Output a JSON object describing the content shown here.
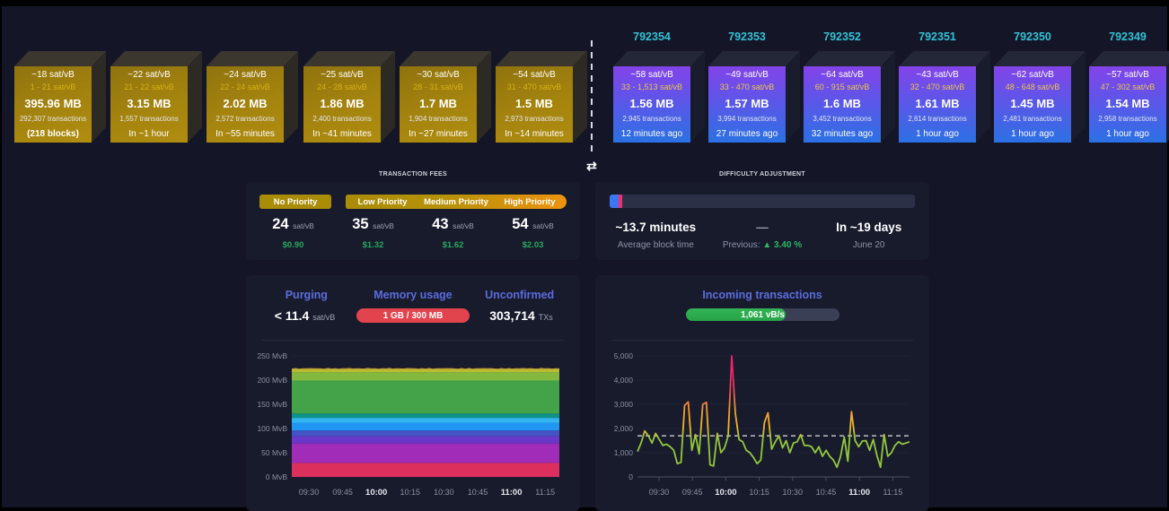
{
  "mempool_blocks": [
    {
      "median_fee": "~18 sat/vB",
      "fee_range": "1 - 21 sat/vB",
      "size": "395.96 MB",
      "tx_count": "292,307 transactions",
      "eta": "(218 blocks)"
    },
    {
      "median_fee": "~22 sat/vB",
      "fee_range": "21 - 22 sat/vB",
      "size": "3.15 MB",
      "tx_count": "1,557 transactions",
      "eta": "In ~1 hour"
    },
    {
      "median_fee": "~24 sat/vB",
      "fee_range": "22 - 24 sat/vB",
      "size": "2.02 MB",
      "tx_count": "2,572 transactions",
      "eta": "In ~55 minutes"
    },
    {
      "median_fee": "~25 sat/vB",
      "fee_range": "24 - 28 sat/vB",
      "size": "1.86 MB",
      "tx_count": "2,400 transactions",
      "eta": "In ~41 minutes"
    },
    {
      "median_fee": "~30 sat/vB",
      "fee_range": "28 - 31 sat/vB",
      "size": "1.7 MB",
      "tx_count": "1,904 transactions",
      "eta": "In ~27 minutes"
    },
    {
      "median_fee": "~54 sat/vB",
      "fee_range": "31 - 470 sat/vB",
      "size": "1.5 MB",
      "tx_count": "2,973 transactions",
      "eta": "In ~14 minutes"
    }
  ],
  "mined_blocks": [
    {
      "height": "792354",
      "median_fee": "~58 sat/vB",
      "fee_range": "33 - 1,513 sat/vB",
      "size": "1.56 MB",
      "tx_count": "2,945 transactions",
      "time_ago": "12 minutes ago"
    },
    {
      "height": "792353",
      "median_fee": "~49 sat/vB",
      "fee_range": "33 - 470 sat/vB",
      "size": "1.57 MB",
      "tx_count": "3,994 transactions",
      "time_ago": "27 minutes ago"
    },
    {
      "height": "792352",
      "median_fee": "~64 sat/vB",
      "fee_range": "60 - 915 sat/vB",
      "size": "1.6 MB",
      "tx_count": "3,452 transactions",
      "time_ago": "32 minutes ago"
    },
    {
      "height": "792351",
      "median_fee": "~43 sat/vB",
      "fee_range": "32 - 470 sat/vB",
      "size": "1.61 MB",
      "tx_count": "2,614 transactions",
      "time_ago": "1 hour ago"
    },
    {
      "height": "792350",
      "median_fee": "~62 sat/vB",
      "fee_range": "48 - 648 sat/vB",
      "size": "1.45 MB",
      "tx_count": "2,481 transactions",
      "time_ago": "1 hour ago"
    },
    {
      "height": "792349",
      "median_fee": "~57 sat/vB",
      "fee_range": "47 - 302 sat/vB",
      "size": "1.54 MB",
      "tx_count": "2,958 transactions",
      "time_ago": "1 hour ago"
    }
  ],
  "fees_panel": {
    "title": "TRANSACTION FEES",
    "tiers": [
      {
        "label": "No Priority",
        "rate": "24",
        "unit": "sat/vB",
        "usd": "$0.90"
      },
      {
        "label": "Low Priority",
        "rate": "35",
        "unit": "sat/vB",
        "usd": "$1.32"
      },
      {
        "label": "Medium Priority",
        "rate": "43",
        "unit": "sat/vB",
        "usd": "$1.62"
      },
      {
        "label": "High Priority",
        "rate": "54",
        "unit": "sat/vB",
        "usd": "$2.03"
      }
    ]
  },
  "difficulty_panel": {
    "title": "DIFFICULTY ADJUSTMENT",
    "avg_block_time": "~13.7 minutes",
    "avg_block_time_label": "Average block time",
    "dash": "—",
    "previous_label": "Previous:",
    "previous_change": "▲ 3.40 %",
    "eta": "In ~19 days",
    "eta_date": "June 20"
  },
  "memory_panel": {
    "headers": [
      "Purging",
      "Memory usage",
      "Unconfirmed"
    ],
    "purging_value": "< 11.4",
    "purging_unit": "sat/vB",
    "memory_badge": "1 GB / 300 MB",
    "unconfirmed_value": "303,714",
    "unconfirmed_unit": "TXs"
  },
  "incoming_panel": {
    "title": "Incoming transactions",
    "rate_badge": "1,061 vB/s"
  },
  "chart_data": [
    {
      "type": "area",
      "title": "Mempool size by fee range (stacked)",
      "ylabel": "MvB",
      "ylim": [
        0,
        250
      ],
      "yticks": [
        "0 MvB",
        "50 MvB",
        "100 MvB",
        "150 MvB",
        "200 MvB",
        "250 MvB"
      ],
      "xticks": [
        "09:30",
        "09:45",
        "10:00",
        "10:15",
        "10:30",
        "10:45",
        "11:00",
        "11:15"
      ],
      "bold_xticks": [
        "10:00",
        "11:00"
      ],
      "total_mvb": 223,
      "stack_layers": [
        {
          "fee_band": "0-2",
          "color": "#dd2f5e",
          "to": 29
        },
        {
          "fee_band": "2-5",
          "color": "#a02cb8",
          "to": 69
        },
        {
          "fee_band": "5-8",
          "color": "#6a38c8",
          "to": 84
        },
        {
          "fee_band": "8-10",
          "color": "#4353c4",
          "to": 96
        },
        {
          "fee_band": "10-12",
          "color": "#2196f3",
          "to": 112
        },
        {
          "fee_band": "12-15",
          "color": "#33b5f0",
          "to": 122
        },
        {
          "fee_band": "15-20",
          "color": "#0d9488",
          "to": 131
        },
        {
          "fee_band": "20-30",
          "color": "#44a248",
          "to": 199
        },
        {
          "fee_band": "30-40",
          "color": "#83b93e",
          "to": 216
        },
        {
          "fee_band": "40-50",
          "color": "#b8bc32",
          "to": 223
        }
      ],
      "fringe_color": "#e8a33d"
    },
    {
      "type": "line",
      "title": "Incoming transactions (vB/s)",
      "ylim": [
        0,
        5000
      ],
      "yticks": [
        "0",
        "1,000",
        "2,000",
        "3,000",
        "4,000",
        "5,000"
      ],
      "xticks": [
        "09:30",
        "09:45",
        "10:00",
        "10:15",
        "10:30",
        "10:45",
        "11:00",
        "11:15"
      ],
      "bold_xticks": [
        "10:00",
        "11:00"
      ],
      "average_line": 1700,
      "values": [
        1050,
        1400,
        1900,
        1700,
        1400,
        1800,
        1550,
        1300,
        1350,
        1250,
        1100,
        550,
        600,
        2950,
        3100,
        1100,
        1750,
        950,
        3000,
        3080,
        500,
        450,
        1800,
        1000,
        1200,
        1700,
        5000,
        2600,
        1550,
        1450,
        1100,
        1000,
        800,
        550,
        700,
        2250,
        2650,
        1150,
        1450,
        1700,
        1200,
        1500,
        1000,
        1400,
        1450,
        1750,
        1300,
        1300,
        1250,
        1000,
        1250,
        850,
        1100,
        850,
        700,
        400,
        850,
        1650,
        650,
        2700,
        1500,
        1250,
        1480,
        1500,
        1100,
        1550,
        900,
        400,
        1750,
        850,
        1000,
        1300,
        1450,
        1350,
        1400,
        1450
      ]
    }
  ]
}
